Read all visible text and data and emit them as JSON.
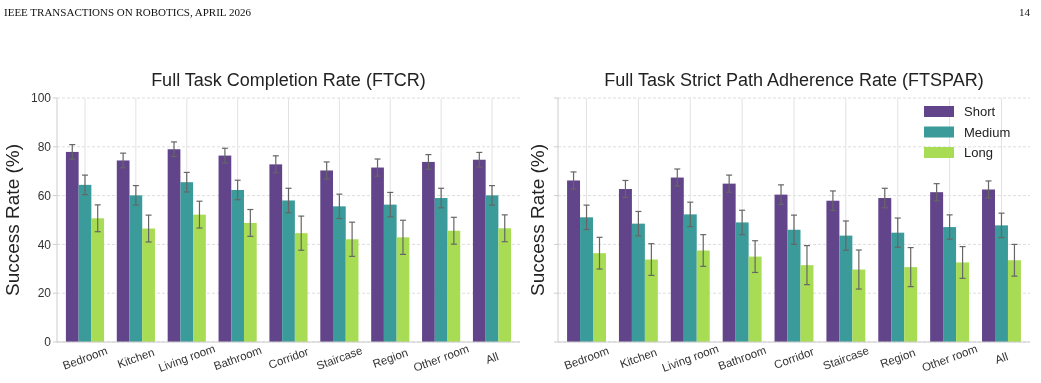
{
  "chart_data": [
    {
      "type": "bar",
      "title": "Full Task Completion Rate (FTCR)",
      "ylabel": "Success Rate (%)",
      "annotations": [
        "IEEE TRANSACTIONS ON ROBOTICS, APRIL 2026",
        "14"
      ],
      "categories": [
        "Bedroom",
        "Kitchen",
        "Living room",
        "Bathroom",
        "Corridor",
        "Staircase",
        "Region",
        "Other room",
        "All"
      ],
      "series": [
        {
          "color": "#62448a",
          "values": [
            77.9,
            74.4,
            79.0,
            76.4,
            72.8,
            70.3,
            71.5,
            73.8,
            74.7
          ],
          "errors": [
            3,
            3,
            3,
            3,
            3.5,
            3.5,
            3.5,
            3,
            3
          ]
        },
        {
          "color": "#3b9a9a",
          "values": [
            64.4,
            60.1,
            65.5,
            62.3,
            58.0,
            55.6,
            56.3,
            59.0,
            60.1
          ],
          "errors": [
            4,
            4,
            4,
            4,
            5,
            5,
            5,
            4,
            4
          ]
        },
        {
          "color": "#a8dc54",
          "values": [
            50.7,
            46.5,
            52.2,
            48.8,
            44.6,
            42.1,
            42.9,
            45.6,
            46.6
          ],
          "errors": [
            5.5,
            5.5,
            5.5,
            5.5,
            7,
            7,
            7,
            5.5,
            5.5
          ]
        }
      ],
      "ylim": [
        0,
        100
      ],
      "yticks": [
        0,
        20,
        40,
        60,
        80,
        100
      ],
      "grid": true,
      "legend": false
    },
    {
      "type": "bar",
      "title": "Full Task Strict Path Adherence Rate (FTSPAR)",
      "ylabel": "Success Rate (%)",
      "categories": [
        "Bedroom",
        "Kitchen",
        "Living room",
        "Bathroom",
        "Corridor",
        "Staircase",
        "Region",
        "Other room",
        "All"
      ],
      "series": [
        {
          "name": "Short",
          "color": "#62448a",
          "values": [
            66.2,
            62.7,
            67.4,
            64.9,
            60.4,
            57.9,
            59.0,
            61.4,
            62.5
          ],
          "errors": [
            3.5,
            3.5,
            3.5,
            3.5,
            4,
            4,
            4,
            3.5,
            3.5
          ]
        },
        {
          "name": "Medium",
          "color": "#3b9a9a",
          "values": [
            51.1,
            48.5,
            52.3,
            49.0,
            46.0,
            43.6,
            44.8,
            47.1,
            47.8
          ],
          "errors": [
            5,
            5,
            5,
            5,
            6,
            6,
            6,
            5,
            5
          ]
        },
        {
          "name": "Long",
          "color": "#a8dc54",
          "values": [
            36.4,
            33.8,
            37.5,
            35.0,
            31.5,
            29.7,
            30.7,
            32.6,
            33.5
          ],
          "errors": [
            6.5,
            6.5,
            6.5,
            6.5,
            8,
            8,
            8,
            6.5,
            6.5
          ]
        }
      ],
      "ylim": [
        0,
        100
      ],
      "yticks": [
        0,
        20,
        40,
        60,
        80,
        100
      ],
      "grid": true,
      "legend": "top right",
      "tick_labels": "x"
    }
  ]
}
